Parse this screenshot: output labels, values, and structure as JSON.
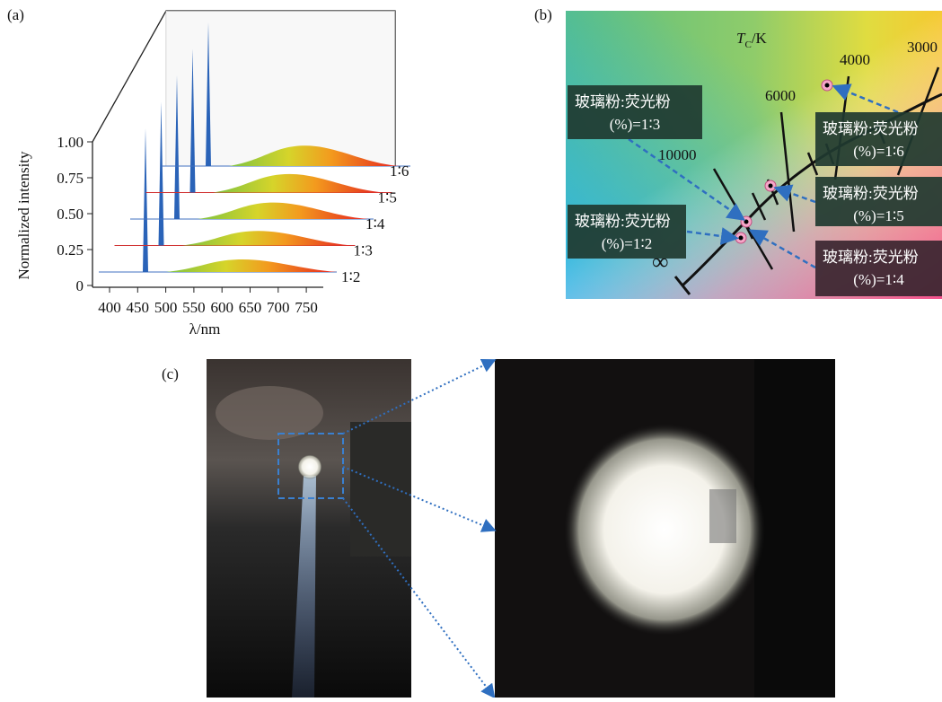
{
  "panels": {
    "a": {
      "label": "(a)",
      "y_label": "Normalized intensity",
      "x_label": "λ/nm",
      "yticks": [
        "0",
        "0.25",
        "0.50",
        "0.75",
        "1.00"
      ],
      "xticks": [
        "400",
        "450",
        "500",
        "550",
        "600",
        "650",
        "700",
        "750"
      ],
      "series": [
        "1∶2",
        "1∶3",
        "1∶4",
        "1∶5",
        "1∶6"
      ]
    },
    "b": {
      "label": "(b)",
      "tc_symbol": "T",
      "tc_subscript": "C",
      "tc_unit": "/K",
      "temperatures": [
        "3000",
        "4000",
        "6000",
        "10000",
        "∞"
      ],
      "callouts": [
        {
          "title": "玻璃粉:荧光粉",
          "ratio": "(%)=1∶3"
        },
        {
          "title": "玻璃粉:荧光粉",
          "ratio": "(%)=1∶2"
        },
        {
          "title": "玻璃粉:荧光粉",
          "ratio": "(%)=1∶6"
        },
        {
          "title": "玻璃粉:荧光粉",
          "ratio": "(%)=1∶5"
        },
        {
          "title": "玻璃粉:荧光粉",
          "ratio": "(%)=1∶4"
        }
      ]
    },
    "c": {
      "label": "(c)"
    }
  }
}
